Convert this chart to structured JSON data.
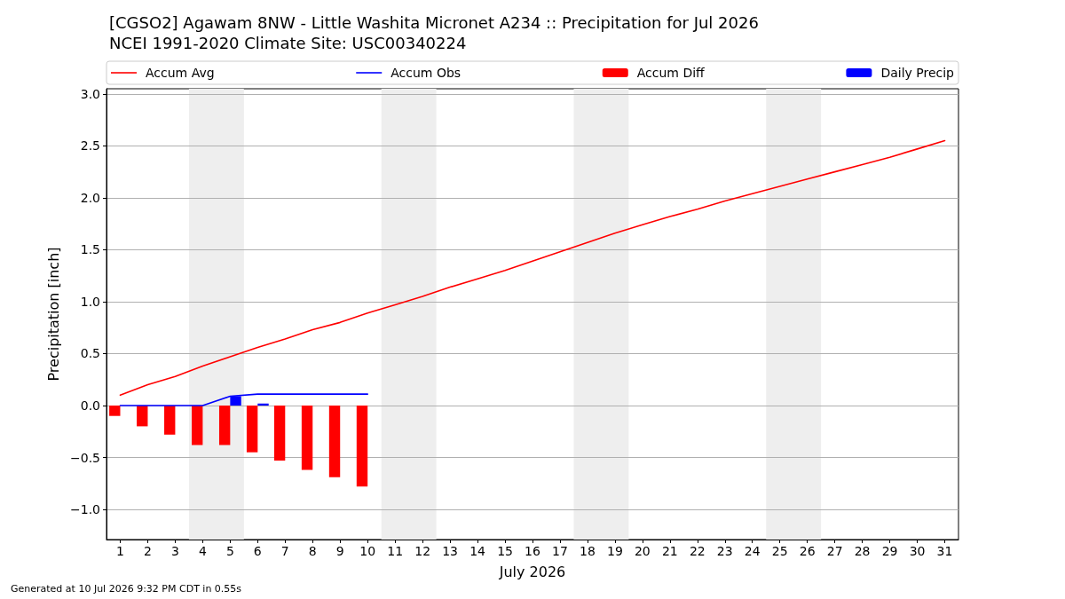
{
  "chart_data": {
    "type": "line",
    "title": "[CGSO2] Agawam 8NW - Little Washita Micronet A234 :: Precipitation for Jul 2026",
    "subtitle": "NCEI 1991-2020 Climate Site: USC00340224",
    "xlabel": "July 2026",
    "ylabel": "Precipitation [inch]",
    "annotations": [
      "Generated at 10 Jul 2026 9:32 PM CDT in 0.55s"
    ],
    "x": [
      1,
      2,
      3,
      4,
      5,
      6,
      7,
      8,
      9,
      10,
      11,
      12,
      13,
      14,
      15,
      16,
      17,
      18,
      19,
      20,
      21,
      22,
      23,
      24,
      25,
      26,
      27,
      28,
      29,
      30,
      31
    ],
    "series": [
      {
        "name": "Accum Avg",
        "color": "#ff0000",
        "values": [
          0.1,
          0.2,
          0.28,
          0.38,
          0.47,
          0.56,
          0.64,
          0.73,
          0.8,
          0.89,
          0.97,
          1.05,
          1.14,
          1.22,
          1.3,
          1.39,
          1.48,
          1.57,
          1.66,
          1.74,
          1.82,
          1.89,
          1.97,
          2.04,
          2.11,
          2.18,
          2.25,
          2.32,
          2.39,
          2.47,
          2.55
        ]
      },
      {
        "name": "Accum Obs",
        "color": "#0000ff",
        "x": [
          1,
          2,
          3,
          4,
          5,
          6,
          7,
          8,
          9,
          10
        ],
        "values": [
          0,
          0,
          0,
          0,
          0.09,
          0.11,
          0.11,
          0.11,
          0.11,
          0.11
        ]
      },
      {
        "name": "Accum Diff",
        "type": "bar",
        "color": "#ff0000",
        "x": [
          1,
          2,
          3,
          4,
          5,
          6,
          7,
          8,
          9,
          10
        ],
        "values": [
          -0.1,
          -0.2,
          -0.28,
          -0.38,
          -0.38,
          -0.45,
          -0.53,
          -0.62,
          -0.69,
          -0.78
        ]
      },
      {
        "name": "Daily Precip",
        "type": "bar",
        "color": "#0000ff",
        "x": [
          1,
          2,
          3,
          4,
          5,
          6,
          7,
          8,
          9,
          10
        ],
        "values": [
          0,
          0,
          0,
          0,
          0.09,
          0.02,
          0,
          0,
          0,
          0
        ]
      }
    ],
    "xlim": [
      0.5,
      31.5
    ],
    "xticks": [
      1,
      2,
      3,
      4,
      5,
      6,
      7,
      8,
      9,
      10,
      11,
      12,
      13,
      14,
      15,
      16,
      17,
      18,
      19,
      20,
      21,
      22,
      23,
      24,
      25,
      26,
      27,
      28,
      29,
      30,
      31
    ],
    "ylim": [
      -1.29,
      3.05
    ],
    "yticks": [
      {
        "value": -1,
        "label": "−1.0"
      },
      {
        "value": -0.5,
        "label": "−0.5"
      },
      {
        "value": 0,
        "label": "0.0"
      },
      {
        "value": 0.5,
        "label": "0.5"
      },
      {
        "value": 1,
        "label": "1.0"
      },
      {
        "value": 1.5,
        "label": "1.5"
      },
      {
        "value": 2,
        "label": "2.0"
      },
      {
        "value": 2.5,
        "label": "2.5"
      },
      {
        "value": 3,
        "label": "3.0"
      }
    ],
    "bands": [
      {
        "axis": "x",
        "from": 3.5,
        "to": 5.5,
        "color": "#eeeeee"
      },
      {
        "axis": "x",
        "from": 10.5,
        "to": 12.5,
        "color": "#eeeeee"
      },
      {
        "axis": "x",
        "from": 17.5,
        "to": 19.5,
        "color": "#eeeeee"
      },
      {
        "axis": "x",
        "from": 24.5,
        "to": 26.5,
        "color": "#eeeeee"
      }
    ],
    "grid": "y",
    "legend": "top",
    "marker": "none",
    "line_style": "solid"
  }
}
